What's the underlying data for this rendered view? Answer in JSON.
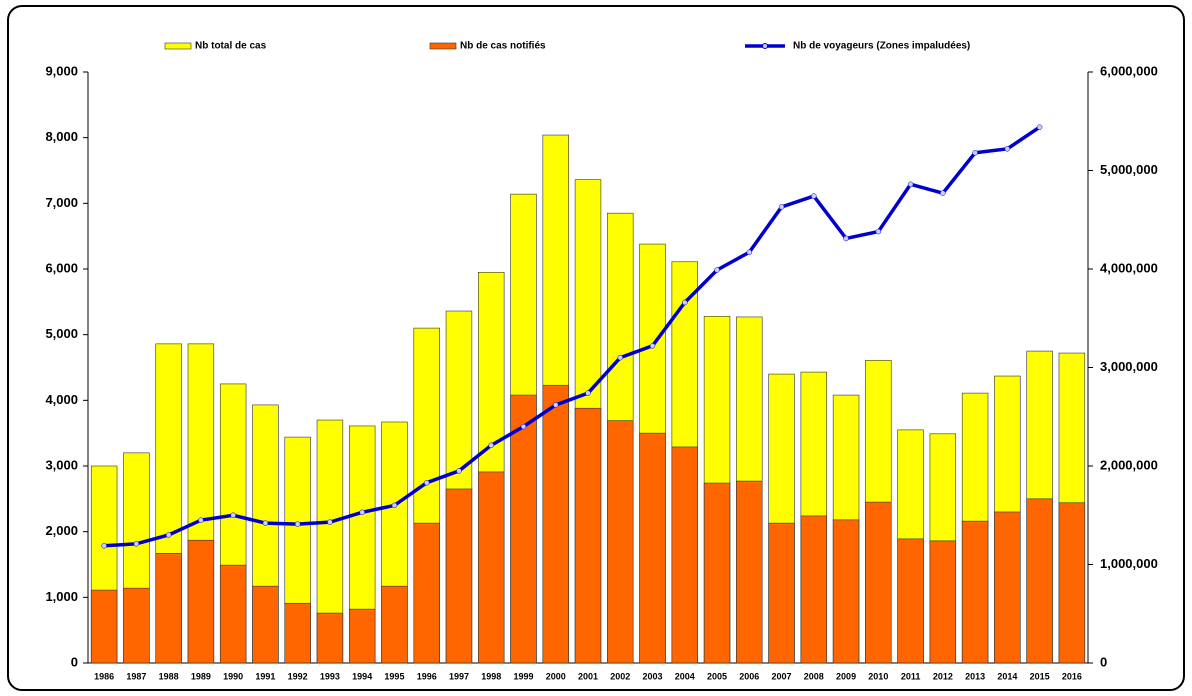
{
  "chart_data": {
    "type": "bar",
    "categories": [
      "1986",
      "1987",
      "1988",
      "1989",
      "1990",
      "1991",
      "1992",
      "1993",
      "1994",
      "1995",
      "1996",
      "1997",
      "1998",
      "1999",
      "2000",
      "2001",
      "2002",
      "2003",
      "2004",
      "2005",
      "2006",
      "2007",
      "2008",
      "2009",
      "2010",
      "2011",
      "2012",
      "2013",
      "2014",
      "2015",
      "2016"
    ],
    "series": [
      {
        "name": "Nb total de cas",
        "color": "#ffff00",
        "type": "bar",
        "values": [
          3000,
          3200,
          4860,
          4860,
          4250,
          3930,
          3440,
          3700,
          3610,
          3670,
          5100,
          5360,
          5950,
          7140,
          8040,
          7360,
          6850,
          6380,
          6110,
          5280,
          5270,
          4400,
          4430,
          4080,
          4610,
          3550,
          3490,
          4110,
          4370,
          4750,
          4720
        ]
      },
      {
        "name": "Nb de cas notifiés",
        "color": "#ff6600",
        "type": "bar",
        "values": [
          1110,
          1140,
          1670,
          1870,
          1490,
          1170,
          910,
          760,
          820,
          1170,
          2130,
          2650,
          2910,
          4080,
          4230,
          3880,
          3690,
          3500,
          3290,
          2740,
          2770,
          2130,
          2240,
          2180,
          2450,
          1890,
          1860,
          2160,
          2300,
          2500,
          2440
        ]
      },
      {
        "name": "Nb de voyageurs (Zones impaludées)",
        "color": "#0000cc",
        "type": "line",
        "axis": "y2",
        "values": [
          1190000,
          1210000,
          1300000,
          1450000,
          1500000,
          1420000,
          1410000,
          1430000,
          1530000,
          1600000,
          1830000,
          1950000,
          2210000,
          2400000,
          2620000,
          2740000,
          3100000,
          3220000,
          3660000,
          3990000,
          4170000,
          4630000,
          4740000,
          4310000,
          4380000,
          4860000,
          4770000,
          5180000,
          5220000,
          5440000,
          null
        ]
      }
    ],
    "ylim": [
      0,
      9000
    ],
    "yticks": [
      0,
      {
        "value": 1000,
        "label": "1,000"
      },
      {
        "value": 2000,
        "label": "2,000"
      },
      {
        "value": 3000,
        "label": "3,000"
      },
      {
        "value": 4000,
        "label": "4,000"
      },
      {
        "value": 5000,
        "label": "5,000"
      },
      {
        "value": 6000,
        "label": "6,000"
      },
      {
        "value": 7000,
        "label": "7,000"
      },
      {
        "value": 8000,
        "label": "8,000"
      },
      {
        "value": 9000,
        "label": "9,000"
      }
    ],
    "y2lim": [
      0,
      6000000
    ],
    "y2ticks": [
      0,
      {
        "value": 1000000,
        "label": "1,000,000"
      },
      {
        "value": 2000000,
        "label": "2,000,000"
      },
      {
        "value": 3000000,
        "label": "3,000,000"
      },
      {
        "value": 4000000,
        "label": "4,000,000"
      },
      {
        "value": 5000000,
        "label": "5,000,000"
      },
      {
        "value": 6000000,
        "label": "6,000,000"
      }
    ],
    "grid": false,
    "legend": "top"
  }
}
